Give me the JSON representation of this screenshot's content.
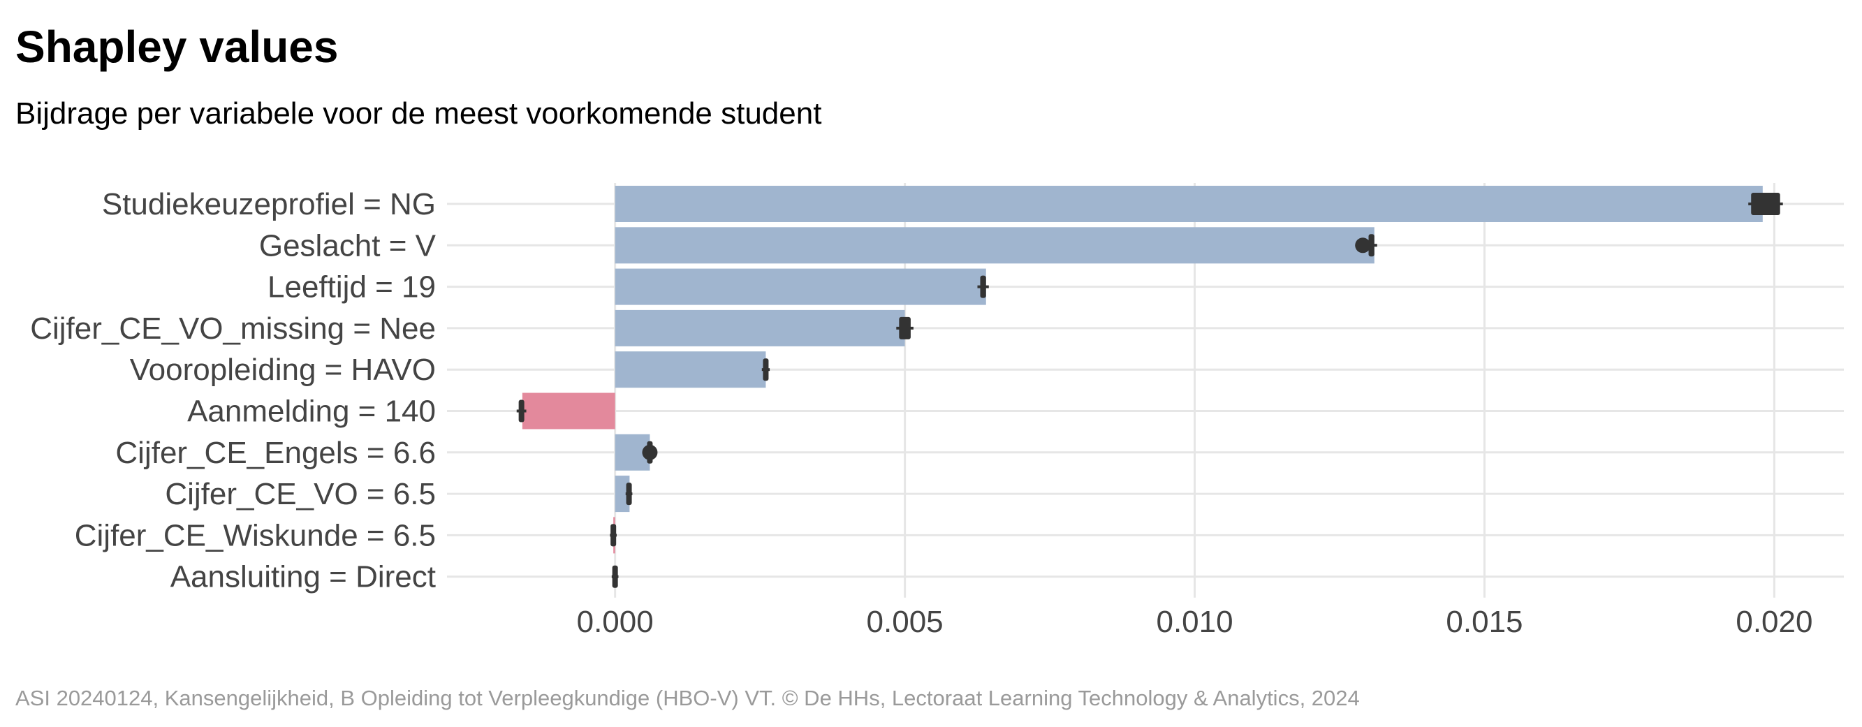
{
  "title": "Shapley values",
  "subtitle": "Bijdrage per variabele voor de meest voorkomende student",
  "caption": "ASI 20240124, Kansengelijkheid, B Opleiding tot Verpleegkundige (HBO-V) VT. © De HHs, Lectoraat Learning Technology & Analytics, 2024",
  "colors": {
    "positive": "#a0b5cf",
    "negative": "#e3899c",
    "marker": "#333333",
    "grid": "#e6e6e6"
  },
  "chart_data": {
    "type": "bar",
    "orientation": "horizontal",
    "title": "Shapley values",
    "subtitle": "Bijdrage per variabele voor de meest voorkomende student",
    "xlabel": "",
    "ylabel": "",
    "xlim": [
      -0.0029,
      0.0212
    ],
    "xticks": [
      0.0,
      0.005,
      0.01,
      0.015,
      0.02
    ],
    "xtick_labels": [
      "0.000",
      "0.005",
      "0.010",
      "0.015",
      "0.020"
    ],
    "grid": true,
    "legend": "none",
    "categories": [
      "Studiekeuzeprofiel = NG",
      "Geslacht = V",
      "Leeftijd = 19",
      "Cijfer_CE_VO_missing = Nee",
      "Vooropleiding = HAVO",
      "Aanmelding = 140",
      "Cijfer_CE_Engels = 6.6",
      "Cijfer_CE_VO = 6.5",
      "Cijfer_CE_Wiskunde = 6.5",
      "Aansluiting = Direct"
    ],
    "values": [
      0.0198,
      0.0131,
      0.0064,
      0.005,
      0.0026,
      -0.0016,
      0.0006,
      0.00025,
      -3e-05,
      0.0
    ],
    "markers": [
      {
        "center": 0.0198,
        "low": 0.0196,
        "high": 0.0201,
        "dot": false
      },
      {
        "center": 0.0131,
        "low": 0.013,
        "high": 0.0131,
        "dot": true,
        "dot_value": 0.0129
      },
      {
        "center": 0.0064,
        "low": 0.0063,
        "high": 0.0064,
        "dot": false
      },
      {
        "center": 0.005,
        "low": 0.0049,
        "high": 0.0051,
        "dot": false
      },
      {
        "center": 0.0026,
        "low": 0.00258,
        "high": 0.00262,
        "dot": false
      },
      {
        "center": -0.0016,
        "low": -0.00165,
        "high": -0.00158,
        "dot": false
      },
      {
        "center": 0.0006,
        "low": 0.00058,
        "high": 0.00062,
        "dot": true,
        "dot_value": 0.0006
      },
      {
        "center": 0.00024,
        "low": 0.00023,
        "high": 0.00025,
        "dot": false
      },
      {
        "center": -3e-05,
        "low": -4e-05,
        "high": -2e-05,
        "dot": false
      },
      {
        "center": 0.0,
        "low": -1e-05,
        "high": 1e-05,
        "dot": false
      }
    ]
  }
}
